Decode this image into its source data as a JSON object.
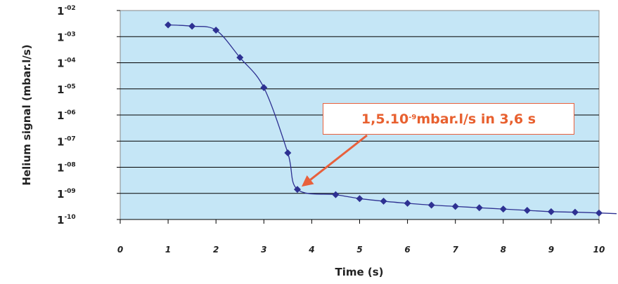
{
  "chart_data": {
    "type": "line",
    "xlabel": "Time (s)",
    "ylabel": "Helium signal (mbar.l/s)",
    "xlim": [
      0,
      10
    ],
    "x_ticks": [
      "0",
      "1",
      "2",
      "3",
      "4",
      "5",
      "6",
      "7",
      "8",
      "9",
      "10"
    ],
    "y_scale": "log",
    "ylim_exponent": [
      -10,
      -2
    ],
    "y_ticks": [
      {
        "base": "1",
        "exp": "-02"
      },
      {
        "base": "1",
        "exp": "-03"
      },
      {
        "base": "1",
        "exp": "-04"
      },
      {
        "base": "1",
        "exp": "-05"
      },
      {
        "base": "1",
        "exp": "-06"
      },
      {
        "base": "1",
        "exp": "-07"
      },
      {
        "base": "1",
        "exp": "-08"
      },
      {
        "base": "1",
        "exp": "-09"
      },
      {
        "base": "1",
        "exp": "-10"
      }
    ],
    "grid": true,
    "series": [
      {
        "x": [
          1,
          1.5,
          2,
          2.5,
          3,
          3.5,
          3.7,
          4.5,
          5,
          5.5,
          6,
          6.5,
          7,
          7.5,
          8,
          8.5,
          9,
          9.5,
          10
        ],
        "log10_y": [
          -2.55,
          -2.6,
          -2.75,
          -3.8,
          -4.95,
          -7.45,
          -8.85,
          -9.05,
          -9.2,
          -9.3,
          -9.38,
          -9.45,
          -9.5,
          -9.55,
          -9.6,
          -9.65,
          -9.7,
          -9.72,
          -9.75
        ]
      }
    ],
    "annotation": {
      "text_prefix": "1,5.10",
      "text_exp": "-9",
      "text_suffix": " mbar.l/s in 3,6 s",
      "x": 3.7,
      "log10_y": -8.85
    },
    "colors": {
      "plot_background": "#c5e6f6",
      "series": "#2e3192",
      "annotation": "#e8603c"
    }
  }
}
